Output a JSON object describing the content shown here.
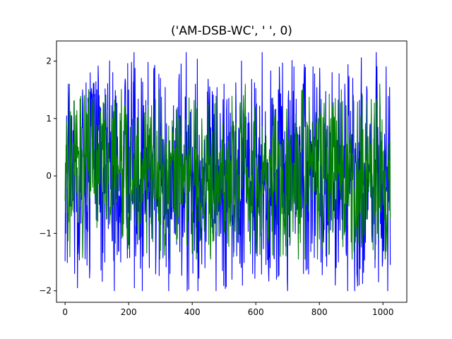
{
  "chart_data": {
    "type": "line",
    "title": "('AM-DSB-WC', '  ', 0)",
    "xlabel": "",
    "ylabel": "",
    "xlim": [
      -27,
      1075
    ],
    "ylim": [
      -2.2,
      2.35
    ],
    "x_ticks": [
      0,
      200,
      400,
      600,
      800,
      1000
    ],
    "y_ticks": [
      -2,
      -1,
      0,
      1,
      2
    ],
    "grid": false,
    "n_points": 1024,
    "x_start": 0,
    "x_step": 1,
    "series": [
      {
        "color": "#0000ff",
        "approx_range": [
          -2.0,
          2.15
        ],
        "envelope_peaks_x": [
          2,
          10,
          30,
          55,
          78,
          100,
          125,
          150,
          175,
          200,
          218,
          240,
          265,
          300,
          330,
          365,
          385,
          410,
          440,
          475,
          500,
          525,
          555,
          590,
          620,
          645,
          665,
          700,
          720,
          750,
          780,
          805,
          840,
          860,
          880,
          905,
          925,
          950,
          975,
          1010,
          1025
        ],
        "envelope_peaks_y": [
          -1.0,
          1.6,
          -1.7,
          1.5,
          -1.6,
          1.5,
          -1.5,
          1.8,
          -1.5,
          1.5,
          -1.95,
          1.7,
          -1.6,
          1.7,
          -1.7,
          1.95,
          -1.6,
          1.6,
          -1.6,
          -2.0,
          1.6,
          -1.8,
          2.0,
          -1.7,
          2.15,
          -1.6,
          -1.8,
          -2.0,
          1.9,
          -1.7,
          1.9,
          -1.5,
          1.8,
          -1.5,
          1.6,
          1.7,
          -1.9,
          1.5,
          -1.6,
          1.9,
          -1.55
        ]
      },
      {
        "color": "#008000",
        "approx_range": [
          -1.45,
          1.6
        ],
        "envelope_peaks_x": [
          5,
          20,
          60,
          100,
          150,
          200,
          250,
          300,
          350,
          400,
          450,
          500,
          550,
          600,
          650,
          700,
          750,
          800,
          850,
          900,
          950,
          990,
          1020
        ],
        "envelope_peaks_y": [
          0.95,
          -0.7,
          1.2,
          -0.9,
          1.0,
          -1.2,
          1.1,
          -1.3,
          1.15,
          -1.35,
          1.25,
          -1.0,
          1.2,
          -1.2,
          1.35,
          -1.1,
          1.3,
          -1.1,
          1.35,
          -1.15,
          1.3,
          1.6,
          -0.6
        ]
      }
    ]
  }
}
